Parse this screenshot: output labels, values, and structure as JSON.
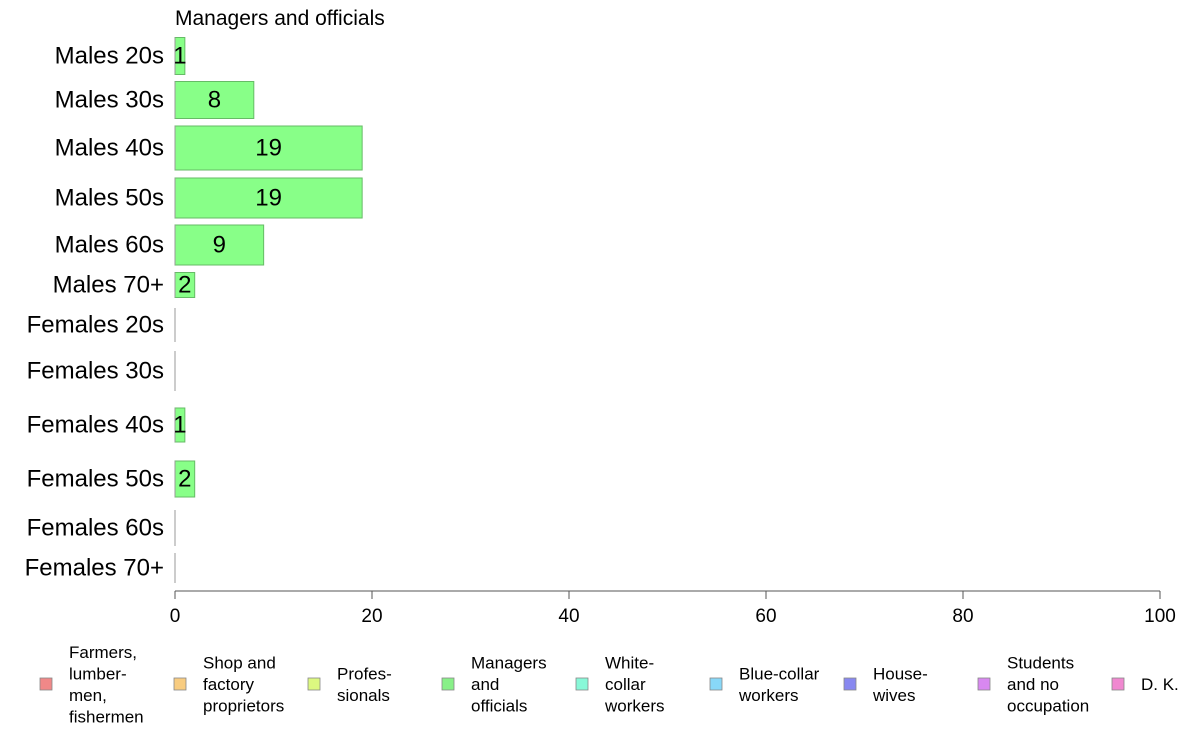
{
  "chart_data": {
    "type": "bar",
    "orientation": "horizontal",
    "title": "Managers and officials",
    "categories": [
      "Males 20s",
      "Males 30s",
      "Males 40s",
      "Males 50s",
      "Males 60s",
      "Males 70+",
      "Females 20s",
      "Females 30s",
      "Females 40s",
      "Females 50s",
      "Females 60s",
      "Females 70+"
    ],
    "series": [
      {
        "name": "Managers and officials",
        "color": "#88ff88",
        "values": [
          1,
          8,
          19,
          19,
          9,
          2,
          0,
          0,
          1,
          2,
          0,
          0
        ]
      }
    ],
    "data_labels": [
      "1",
      "8",
      "19",
      "19",
      "9",
      "2",
      "",
      "",
      "1",
      "2",
      "",
      ""
    ],
    "xlim": [
      0,
      100
    ],
    "xticks": [
      0,
      20,
      40,
      60,
      80,
      100
    ],
    "xtick_labels": [
      "0",
      "20",
      "40",
      "60",
      "80",
      "100"
    ],
    "grid": false,
    "legend_position": "bottom",
    "legend": [
      {
        "lines": [
          "Farmers,",
          "lumber-",
          "men,",
          "fishermen"
        ],
        "color": "#f08888"
      },
      {
        "lines": [
          "Shop and",
          "factory",
          "proprietors"
        ],
        "color": "#f8cc80"
      },
      {
        "lines": [
          "Profes-",
          "sionals"
        ],
        "color": "#dcf880"
      },
      {
        "lines": [
          "Managers",
          "and",
          "officials"
        ],
        "color": "#88f088"
      },
      {
        "lines": [
          "White-",
          "collar",
          "workers"
        ],
        "color": "#88f8d8"
      },
      {
        "lines": [
          "Blue-collar",
          "workers"
        ],
        "color": "#88d8f8"
      },
      {
        "lines": [
          "House-",
          "wives"
        ],
        "color": "#8888f0"
      },
      {
        "lines": [
          "Students",
          "and no",
          "occupation"
        ],
        "color": "#d888f0"
      },
      {
        "lines": [
          "D. K."
        ],
        "color": "#f088d0"
      }
    ]
  }
}
